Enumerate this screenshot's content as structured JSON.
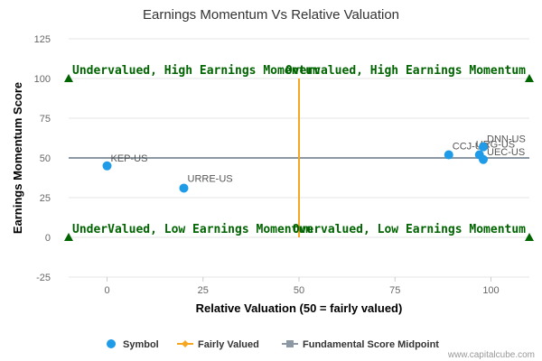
{
  "chart_data": {
    "type": "scatter",
    "title": "Earnings Momentum Vs Relative Valuation",
    "xlabel": "Relative Valuation (50 = fairly valued)",
    "ylabel": "Earnings Momentum Score",
    "xlim": [
      -10,
      110
    ],
    "ylim": [
      -25,
      125
    ],
    "x_ticks": [
      0,
      25,
      50,
      75,
      100
    ],
    "y_ticks": [
      -25,
      0,
      25,
      50,
      75,
      100,
      125
    ],
    "grid": "horizontal",
    "points": [
      {
        "label": "KEP-US",
        "x": 0,
        "y": 45
      },
      {
        "label": "URRE-US",
        "x": 20,
        "y": 31
      },
      {
        "label": "CCJ-US",
        "x": 89,
        "y": 52
      },
      {
        "label": "URG-US",
        "x": 97,
        "y": 52
      },
      {
        "label": "DNN-US",
        "x": 98,
        "y": 57
      },
      {
        "label": "UEC-US",
        "x": 98,
        "y": 49
      }
    ],
    "fairly_valued_line": {
      "x": 50,
      "y_range": [
        0,
        100
      ]
    },
    "midpoint_line": {
      "y": 50
    },
    "quadrant_markers": [
      {
        "x": -10,
        "y": 100
      },
      {
        "x": 110,
        "y": 100
      },
      {
        "x": -10,
        "y": 0
      },
      {
        "x": 110,
        "y": 0
      }
    ],
    "quadrant_labels": [
      {
        "text": "Undervalued, High Earnings Momentum",
        "x": -10,
        "y": 100,
        "anchor": "start"
      },
      {
        "text": "Overvalued, High Earnings Momentum",
        "x": 110,
        "y": 100,
        "anchor": "end"
      },
      {
        "text": "UnderValued, Low Earnings Momentum",
        "x": -10,
        "y": 0,
        "anchor": "start"
      },
      {
        "text": "Overvalued, Low Earnings Momentum",
        "x": 110,
        "y": 0,
        "anchor": "end"
      }
    ],
    "legend": {
      "position": "bottom-center",
      "items": [
        "Symbol",
        "Fairly Valued",
        "Fundamental Score Midpoint"
      ]
    },
    "colors": {
      "symbol": "#1f9be8",
      "fairly_valued": "#f5a623",
      "midpoint": "#8c98a4",
      "quadrant_text": "#006400",
      "grid": "#e6e6e6"
    }
  },
  "credit": "www.capitalcube.com"
}
